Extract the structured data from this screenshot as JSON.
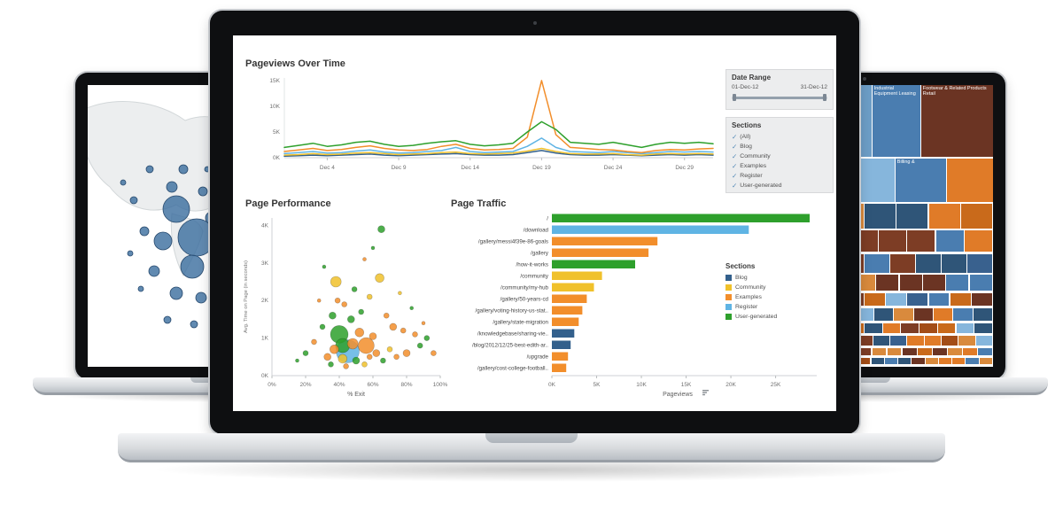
{
  "section_colors": {
    "Blog": "#33608c",
    "Community": "#f0c12b",
    "Examples": "#f28e2b",
    "Register": "#5fb4e4",
    "User-generated": "#2ea02c"
  },
  "dashboard": {
    "pageviews_title": "Pageviews Over Time",
    "performance_title": "Page Performance",
    "traffic_title": "Page Traffic",
    "date_range": {
      "title": "Date Range",
      "start": "01-Dec-12",
      "end": "31-Dec-12"
    },
    "filter": {
      "title": "Sections",
      "all_label": "(All)",
      "items": [
        "Blog",
        "Community",
        "Examples",
        "Register",
        "User-generated"
      ]
    },
    "legend": {
      "title": "Sections",
      "items": [
        "Blog",
        "Community",
        "Examples",
        "Register",
        "User-generated"
      ]
    }
  },
  "chart_data": [
    {
      "id": "pageviews_over_time",
      "type": "line",
      "title": "Pageviews Over Time",
      "x_ticks": [
        "Dec 4",
        "Dec 9",
        "Dec 14",
        "Dec 19",
        "Dec 24",
        "Dec 29"
      ],
      "tick_days": [
        4,
        9,
        14,
        19,
        24,
        29
      ],
      "y_ticks": [
        "0K",
        "5K",
        "10K",
        "15K"
      ],
      "ylim_k": [
        0,
        15.5
      ],
      "x_range_days": [
        1,
        31
      ],
      "series": [
        {
          "name": "Blog",
          "values_k": [
            0.3,
            0.4,
            0.5,
            0.4,
            0.5,
            0.6,
            0.7,
            0.5,
            0.4,
            0.5,
            0.6,
            0.7,
            0.8,
            0.6,
            0.5,
            0.5,
            0.6,
            1.0,
            1.4,
            0.9,
            0.6,
            0.5,
            0.5,
            0.6,
            0.5,
            0.4,
            0.5,
            0.6,
            0.5,
            0.6,
            0.5
          ]
        },
        {
          "name": "Community",
          "values_k": [
            0.5,
            0.6,
            0.8,
            0.6,
            0.7,
            0.9,
            1.0,
            0.8,
            0.6,
            0.7,
            0.8,
            1.0,
            1.1,
            0.8,
            0.7,
            0.8,
            0.9,
            1.3,
            1.8,
            1.2,
            0.8,
            0.7,
            0.7,
            0.8,
            0.6,
            0.5,
            0.7,
            0.8,
            0.7,
            0.8,
            0.7
          ]
        },
        {
          "name": "Register",
          "values_k": [
            0.8,
            1.0,
            1.2,
            0.9,
            1.0,
            1.3,
            1.5,
            1.1,
            0.9,
            1.0,
            1.2,
            1.4,
            2.0,
            1.2,
            1.0,
            1.1,
            1.2,
            2.2,
            3.8,
            2.0,
            1.2,
            1.1,
            1.0,
            1.2,
            1.0,
            0.8,
            1.0,
            1.2,
            1.1,
            1.2,
            1.1
          ]
        },
        {
          "name": "Examples",
          "values_k": [
            1.2,
            1.5,
            1.8,
            1.4,
            1.6,
            2.0,
            2.3,
            1.8,
            1.5,
            1.4,
            1.6,
            2.2,
            2.6,
            1.8,
            1.5,
            1.6,
            1.8,
            4.0,
            15.0,
            4.5,
            2.0,
            1.8,
            1.6,
            1.5,
            1.2,
            1.0,
            1.4,
            1.6,
            1.5,
            1.7,
            1.8
          ]
        },
        {
          "name": "User-generated",
          "values_k": [
            2.0,
            2.4,
            2.8,
            2.2,
            2.5,
            3.0,
            3.2,
            2.6,
            2.2,
            2.4,
            2.8,
            3.1,
            3.3,
            2.6,
            2.3,
            2.5,
            2.8,
            5.0,
            7.0,
            5.5,
            3.0,
            2.8,
            2.6,
            3.0,
            2.5,
            2.0,
            2.6,
            3.0,
            2.8,
            3.0,
            2.7
          ]
        }
      ]
    },
    {
      "id": "page_performance",
      "type": "scatter",
      "title": "Page Performance",
      "xlabel": "% Exit",
      "ylabel": "Avg. Time on Page (in seconds)",
      "x_ticks": [
        "0%",
        "20%",
        "40%",
        "60%",
        "80%",
        "100%"
      ],
      "y_ticks": [
        "0K",
        "1K",
        "2K",
        "3K",
        "4K"
      ],
      "xlim": [
        0,
        100
      ],
      "ylim_k": [
        0,
        4.2
      ],
      "point_fields": [
        "x_pct",
        "y_k",
        "r",
        "section"
      ],
      "points": [
        [
          45,
          0.65,
          13,
          "Register"
        ],
        [
          40,
          1.1,
          10,
          "User-generated"
        ],
        [
          42,
          0.8,
          8,
          "User-generated"
        ],
        [
          56,
          0.8,
          9,
          "Examples"
        ],
        [
          48,
          0.85,
          6,
          "Examples"
        ],
        [
          52,
          1.15,
          5,
          "Examples"
        ],
        [
          60,
          1.05,
          4,
          "Examples"
        ],
        [
          38,
          2.5,
          6,
          "Community"
        ],
        [
          64,
          2.6,
          5,
          "Community"
        ],
        [
          36,
          1.6,
          4,
          "User-generated"
        ],
        [
          30,
          1.3,
          3,
          "User-generated"
        ],
        [
          65,
          3.9,
          4,
          "User-generated"
        ],
        [
          72,
          1.3,
          4,
          "Examples"
        ],
        [
          78,
          1.2,
          3,
          "Examples"
        ],
        [
          85,
          1.1,
          3,
          "Examples"
        ],
        [
          92,
          1.0,
          3,
          "User-generated"
        ],
        [
          96,
          0.6,
          3,
          "Examples"
        ],
        [
          25,
          0.9,
          3,
          "Examples"
        ],
        [
          20,
          0.6,
          3,
          "User-generated"
        ],
        [
          15,
          0.4,
          2,
          "User-generated"
        ],
        [
          33,
          0.5,
          4,
          "Examples"
        ],
        [
          35,
          0.3,
          3,
          "User-generated"
        ],
        [
          44,
          0.25,
          3,
          "Examples"
        ],
        [
          50,
          0.4,
          4,
          "User-generated"
        ],
        [
          55,
          0.3,
          3,
          "Community"
        ],
        [
          58,
          0.5,
          3,
          "Examples"
        ],
        [
          62,
          0.6,
          4,
          "Examples"
        ],
        [
          66,
          0.4,
          3,
          "User-generated"
        ],
        [
          70,
          0.7,
          3,
          "Community"
        ],
        [
          74,
          0.5,
          3,
          "Examples"
        ],
        [
          80,
          0.6,
          4,
          "Examples"
        ],
        [
          88,
          0.8,
          3,
          "User-generated"
        ],
        [
          47,
          1.5,
          4,
          "User-generated"
        ],
        [
          43,
          1.9,
          3,
          "Examples"
        ],
        [
          39,
          2.0,
          3,
          "Examples"
        ],
        [
          53,
          1.7,
          3,
          "User-generated"
        ],
        [
          58,
          2.1,
          3,
          "Community"
        ],
        [
          49,
          2.3,
          3,
          "User-generated"
        ],
        [
          28,
          2.0,
          2,
          "Examples"
        ],
        [
          31,
          2.9,
          2,
          "User-generated"
        ],
        [
          55,
          3.1,
          2,
          "Examples"
        ],
        [
          60,
          3.4,
          2,
          "User-generated"
        ],
        [
          42,
          0.45,
          5,
          "Community"
        ],
        [
          37,
          0.7,
          5,
          "Examples"
        ],
        [
          68,
          1.6,
          3,
          "Examples"
        ],
        [
          76,
          2.2,
          2,
          "Community"
        ],
        [
          83,
          1.8,
          2,
          "User-generated"
        ],
        [
          90,
          1.4,
          2,
          "Examples"
        ]
      ]
    },
    {
      "id": "page_traffic",
      "type": "bar",
      "title": "Page Traffic",
      "xlabel": "Pageviews",
      "x_ticks": [
        "0K",
        "5K",
        "10K",
        "15K",
        "20K",
        "25K"
      ],
      "tick_values": [
        0,
        5000,
        10000,
        15000,
        20000,
        25000
      ],
      "scale_max": 29000,
      "row_fields": [
        "label",
        "pageviews",
        "section"
      ],
      "rows": [
        [
          "/",
          28800,
          "User-generated"
        ],
        [
          "/download",
          22000,
          "Register"
        ],
        [
          "/gallery/messi4f39e-86-goals",
          11800,
          "Examples"
        ],
        [
          "/gallery",
          10800,
          "Examples"
        ],
        [
          "/how-it-works",
          9300,
          "User-generated"
        ],
        [
          "/community",
          5600,
          "Community"
        ],
        [
          "/community/my-hub",
          4700,
          "Community"
        ],
        [
          "/gallery/50-years-cd",
          3900,
          "Examples"
        ],
        [
          "/gallery/voting-history-us-stat..",
          3400,
          "Examples"
        ],
        [
          "/gallery/state-migration",
          3000,
          "Examples"
        ],
        [
          "/knowledgebase/sharing-vie..",
          2500,
          "Blog"
        ],
        [
          "/blog/2012/12/25-best-edith-ar..",
          2100,
          "Blog"
        ],
        [
          "/upgrade",
          1800,
          "Examples"
        ],
        [
          "/gallery/cost-college-football..",
          1600,
          "Examples"
        ]
      ]
    },
    {
      "id": "symbol_map",
      "type": "map",
      "bubble_color": "#3a6d9d",
      "point_fields": [
        "x",
        "y",
        "r"
      ],
      "points": [
        [
          100,
          140,
          15
        ],
        [
          123,
          172,
          21
        ],
        [
          85,
          176,
          10
        ],
        [
          118,
          205,
          13
        ],
        [
          95,
          115,
          6
        ],
        [
          70,
          95,
          4
        ],
        [
          52,
          130,
          4
        ],
        [
          64,
          165,
          5
        ],
        [
          108,
          95,
          5
        ],
        [
          130,
          120,
          5
        ],
        [
          40,
          110,
          3
        ],
        [
          75,
          210,
          6
        ],
        [
          100,
          235,
          7
        ],
        [
          128,
          240,
          6
        ],
        [
          60,
          230,
          3
        ],
        [
          90,
          265,
          4
        ],
        [
          120,
          270,
          4
        ],
        [
          140,
          150,
          7
        ],
        [
          150,
          190,
          9
        ],
        [
          160,
          230,
          8
        ],
        [
          135,
          95,
          3
        ],
        [
          48,
          190,
          3
        ]
      ]
    },
    {
      "id": "industry_treemap",
      "type": "treemap",
      "cell_fields": [
        "x_pct",
        "y_pct",
        "w_pct",
        "h_pct",
        "color",
        "label"
      ],
      "cells": [
        [
          0,
          0,
          16,
          25.6,
          "#e07b28",
          ""
        ],
        [
          16.4,
          0,
          19.6,
          25.6,
          "#39618e",
          ""
        ],
        [
          36.4,
          0,
          16.2,
          25.6,
          "#6d9ec7",
          ""
        ],
        [
          53,
          0,
          18.6,
          25.6,
          "#4a7db0",
          "Industrial Equipment Leasing"
        ],
        [
          72,
          0,
          28,
          25.6,
          "#6b3423",
          "Footwear & Related Products Retail"
        ],
        [
          0,
          26,
          13.6,
          15.6,
          "#4a7db0",
          ""
        ],
        [
          14,
          26,
          15.6,
          15.6,
          "#c96a1b",
          ""
        ],
        [
          30,
          26,
          14.6,
          15.6,
          "#7d3d25",
          ""
        ],
        [
          45,
          26,
          16.6,
          15.6,
          "#86b6dc",
          ""
        ],
        [
          62,
          26,
          19.6,
          15.6,
          "#4a7db0",
          "Billing &"
        ],
        [
          82,
          26,
          18,
          15.6,
          "#e07b28",
          ""
        ]
      ],
      "mosaic_palette": [
        "#4a7db0",
        "#39618e",
        "#86b6dc",
        "#e07b28",
        "#c96a1b",
        "#7d3d25",
        "#6b3423",
        "#a34d17",
        "#2f5578",
        "#d98a3d"
      ]
    }
  ]
}
